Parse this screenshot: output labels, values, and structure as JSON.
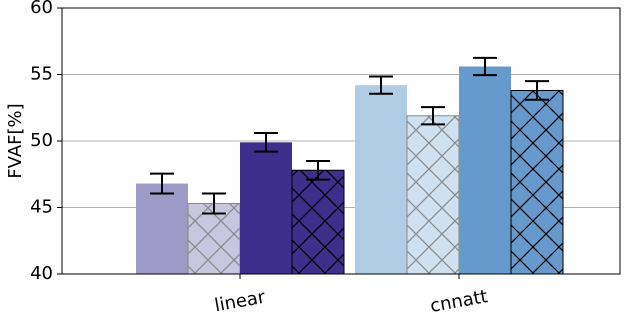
{
  "chart_data": {
    "type": "bar",
    "y_label": "FVAF[%]",
    "categories": [
      "linear",
      "cnnatt"
    ],
    "series": [
      {
        "colors": [
          "#9e9ac8",
          "#b0cce5"
        ],
        "hatch": false,
        "values": [
          46.8,
          54.2
        ],
        "errors": [
          0.75,
          0.65
        ]
      },
      {
        "colors": [
          "#c8c6df",
          "#cfe0ef"
        ],
        "hatch": true,
        "hatch_color": "#888888",
        "values": [
          45.3,
          51.9
        ],
        "errors": [
          0.75,
          0.65
        ]
      },
      {
        "colors": [
          "#3f2f8c",
          "#6699cc"
        ],
        "hatch": false,
        "values": [
          49.9,
          55.6
        ],
        "errors": [
          0.7,
          0.65
        ]
      },
      {
        "colors": [
          "#3f2f8c",
          "#6699cc"
        ],
        "hatch": true,
        "hatch_color": "#000000",
        "values": [
          47.8,
          53.8
        ],
        "errors": [
          0.7,
          0.7
        ]
      }
    ],
    "ylim": [
      40,
      60
    ],
    "yticks": [
      40,
      45,
      50,
      55,
      60
    ],
    "grid": true
  }
}
